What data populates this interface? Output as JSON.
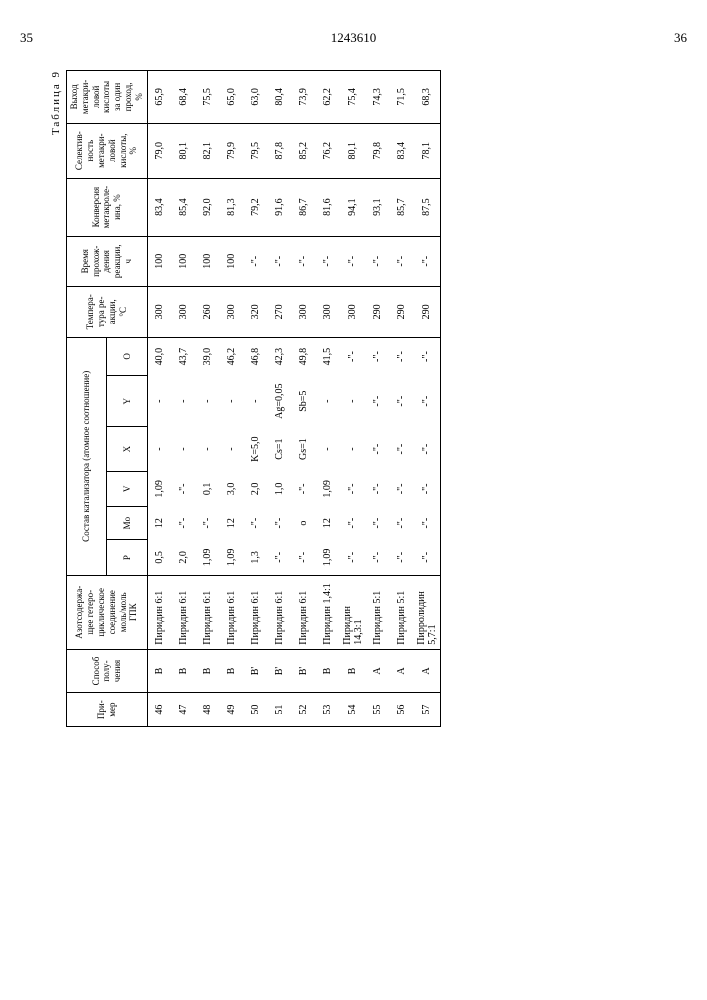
{
  "page_left": "35",
  "page_right": "36",
  "doc_number": "1243610",
  "table_caption": "Таблица 9",
  "headers": {
    "h1": "При-\nмер",
    "h2": "Способ\nполу-\nчения",
    "h3": "Азотсодержа-\nщее гетеро-\nциклическое\nсоединение\nмоль/моль\nГПК",
    "h4": "Состав катализатора (атомное соотношение)",
    "h4_p": "P",
    "h4_mo": "Mo",
    "h4_v": "V",
    "h4_x": "X",
    "h4_y": "Y",
    "h4_o": "O",
    "h5": "Темпера-\nтура ре-\nакции,\n°C",
    "h6": "Время\nпрохож-\nдения\nреакции,\nч",
    "h7": "Конверсия\nметакроле-\nина, %",
    "h8": "Селектив-\nность\nметакри-\nловой\nкислоты,\n%",
    "h9": "Выход\nметакри-\nловой\nкислоты\nза один\nпроход,\n%"
  },
  "rows": [
    {
      "n": "46",
      "m": "В",
      "het": "Пиридин 6:1",
      "p": "0,5",
      "mo": "12",
      "v": "1,09",
      "x": "-",
      "y": "-",
      "o": "40,0",
      "t": "300",
      "time": "100",
      "conv": "83,4",
      "sel": "79,0",
      "yield": "65,9"
    },
    {
      "n": "47",
      "m": "В",
      "het": "Пиридин 6:1",
      "p": "2,0",
      "mo": "-\"-",
      "v": "-\"-",
      "x": "-",
      "y": "-",
      "o": "43,7",
      "t": "300",
      "time": "100",
      "conv": "85,4",
      "sel": "80,1",
      "yield": "68,4"
    },
    {
      "n": "48",
      "m": "В",
      "het": "Пиридин 6:1",
      "p": "1,09",
      "mo": "-\"-",
      "v": "0,1",
      "x": "-",
      "y": "-",
      "o": "39,0",
      "t": "260",
      "time": "100",
      "conv": "92,0",
      "sel": "82,1",
      "yield": "75,5"
    },
    {
      "n": "49",
      "m": "В",
      "het": "Пиридин 6:1",
      "p": "1,09",
      "mo": "12",
      "v": "3,0",
      "x": "-",
      "y": "-",
      "o": "46,2",
      "t": "300",
      "time": "100",
      "conv": "81,3",
      "sel": "79,9",
      "yield": "65,0"
    },
    {
      "n": "50",
      "m": "В'",
      "het": "Пиридин 6:1",
      "p": "1,3",
      "mo": "-\"-",
      "v": "2,0",
      "x": "K=5,0",
      "y": "-",
      "o": "46,8",
      "t": "320",
      "time": "-\"-",
      "conv": "79,2",
      "sel": "79,5",
      "yield": "63,0"
    },
    {
      "n": "51",
      "m": "В'",
      "het": "Пиридин 6:1",
      "p": "-\"-",
      "mo": "-\"-",
      "v": "1,0",
      "x": "Cs=1",
      "y": "Ag=0,05",
      "o": "42,3",
      "t": "270",
      "time": "-\"-",
      "conv": "91,6",
      "sel": "87,8",
      "yield": "80,4"
    },
    {
      "n": "52",
      "m": "В'",
      "het": "Пиридин 6:1",
      "p": "-\"-",
      "mo": "о",
      "v": "-\"-",
      "x": "Gs=1",
      "y": "Sb=5",
      "o": "49,8",
      "t": "300",
      "time": "-\"-",
      "conv": "86,7",
      "sel": "85,2",
      "yield": "73,9"
    },
    {
      "n": "53",
      "m": "В",
      "het": "Пиридин 1,4:1",
      "p": "1,09",
      "mo": "12",
      "v": "1,09",
      "x": "-",
      "y": "-",
      "o": "41,5",
      "t": "300",
      "time": "-\"-",
      "conv": "81,6",
      "sel": "76,2",
      "yield": "62,2"
    },
    {
      "n": "54",
      "m": "В",
      "het": "Пиридин\n14,3:1",
      "p": "-\"-",
      "mo": "-\"-",
      "v": "-\"-",
      "x": "-",
      "y": "-",
      "o": "-\"-",
      "t": "300",
      "time": "-\"-",
      "conv": "94,1",
      "sel": "80,1",
      "yield": "75,4"
    },
    {
      "n": "55",
      "m": "А",
      "het": "Пиридин 5:1",
      "p": "-\"-",
      "mo": "-\"-",
      "v": "-\"-",
      "x": "-\"-",
      "y": "-\"-",
      "o": "-\"-",
      "t": "290",
      "time": "-\"-",
      "conv": "93,1",
      "sel": "79,8",
      "yield": "74,3"
    },
    {
      "n": "56",
      "m": "А",
      "het": "Пиридин 5:1",
      "p": "-\"-",
      "mo": "-\"-",
      "v": "-\"-",
      "x": "-\"-",
      "y": "-\"-",
      "o": "-\"-",
      "t": "290",
      "time": "-\"-",
      "conv": "85,7",
      "sel": "83,4",
      "yield": "71,5"
    },
    {
      "n": "57",
      "m": "А",
      "het": "Пирролидин\n5,7:1",
      "p": "-\"-",
      "mo": "-\"-",
      "v": "-\"-",
      "x": "-\"-",
      "y": "-\"-",
      "o": "-\"-",
      "t": "290",
      "time": "-\"-",
      "conv": "87,5",
      "sel": "78,1",
      "yield": "68,3"
    }
  ]
}
